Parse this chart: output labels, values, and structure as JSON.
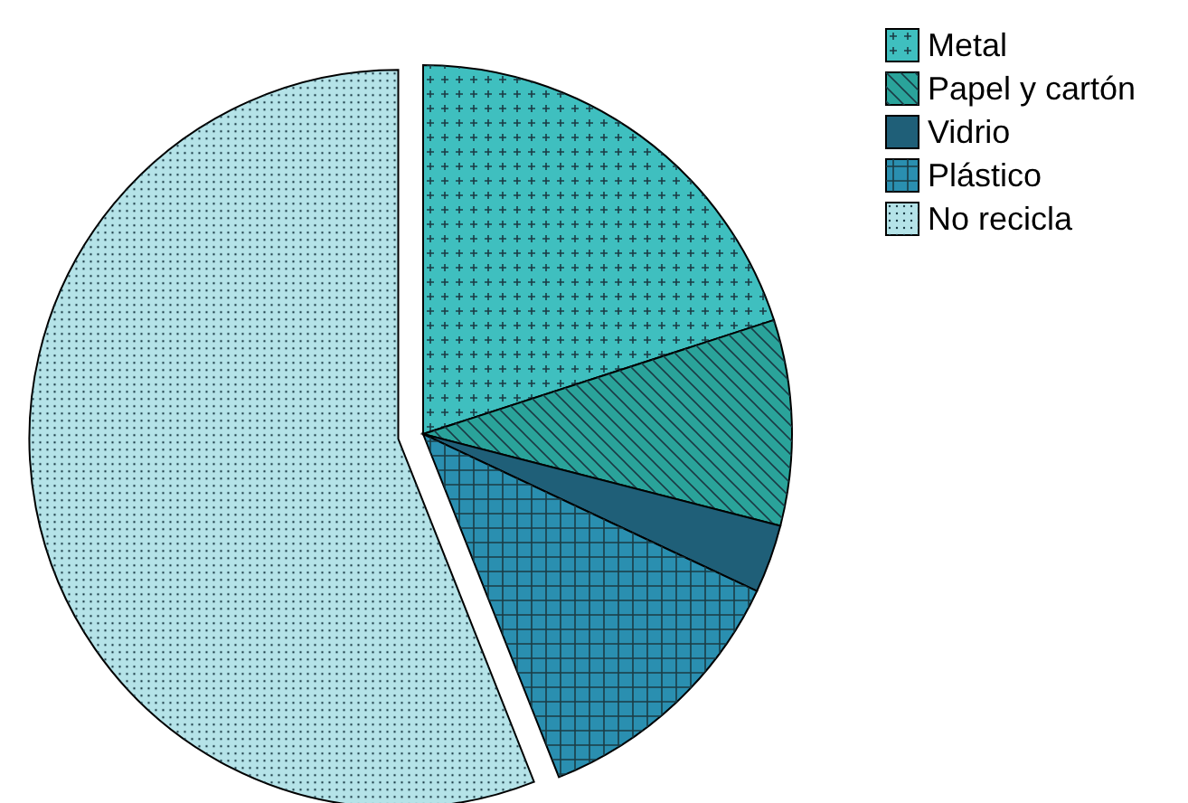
{
  "chart_data": {
    "type": "pie",
    "categories": [
      "Metal",
      "Papel y cartón",
      "Vidrio",
      "Plástico",
      "No recicla"
    ],
    "values": [
      20,
      9,
      3,
      12,
      56
    ],
    "colors": [
      "#3fbfbf",
      "#2aa39a",
      "#1f5f78",
      "#2a8fb0",
      "#b5e3e8"
    ],
    "legend": "top right"
  }
}
